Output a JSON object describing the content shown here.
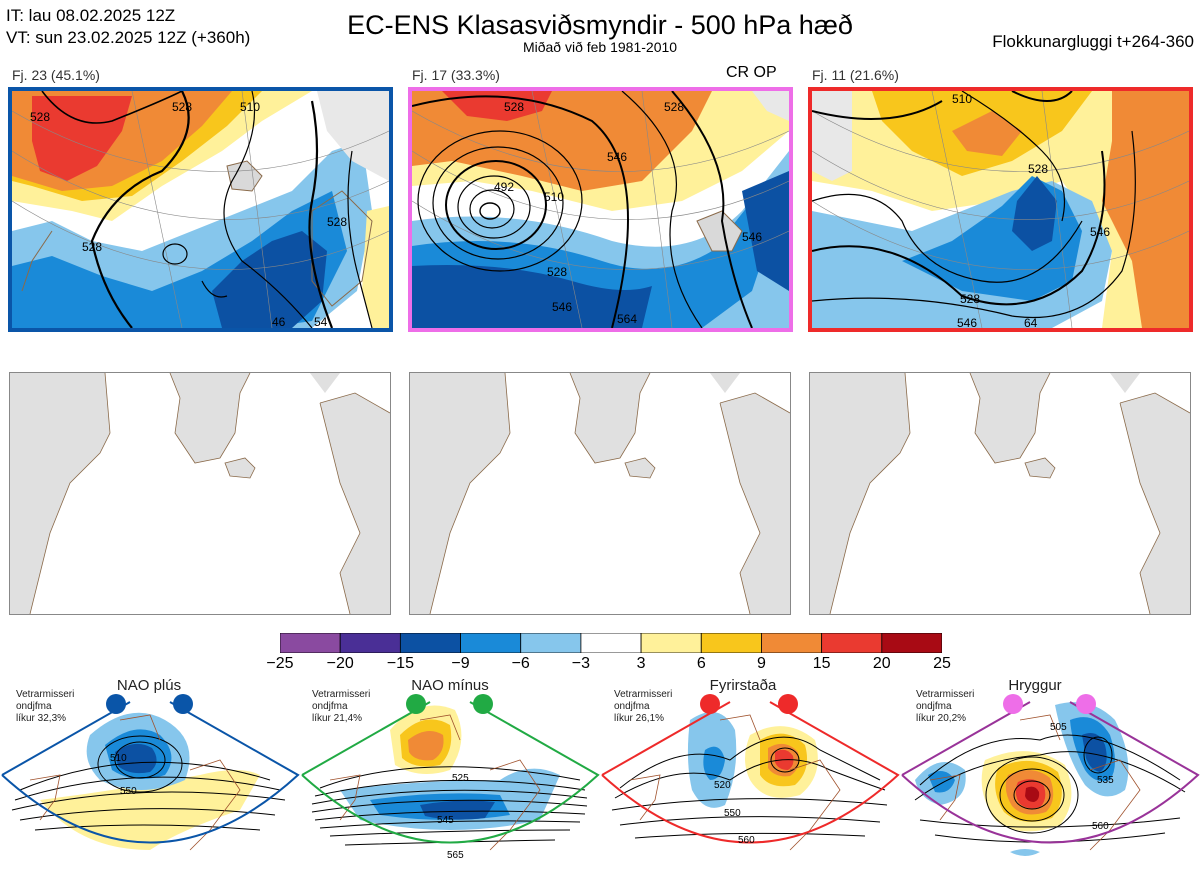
{
  "header": {
    "it_line": "IT: lau 08.02.2025 12Z",
    "vt_line": "VT: sun 23.02.2025 12Z  (+360h)",
    "title": "EC-ENS Klasasviðsmyndir - 500 hPa hæð",
    "subtitle": "Miðað við feb 1981-2010",
    "window": "Flokkunargluggi t+264-360"
  },
  "clusters": [
    {
      "label": "Fj. 23 (45.1%)",
      "border_color": "#0a55a8",
      "contour_labels": [
        "528",
        "510",
        "528",
        "528",
        "528",
        "46",
        "54"
      ]
    },
    {
      "label": "Fj. 17 (33.3%)",
      "border_color": "#ee6ee8",
      "extra_label": "CR OP",
      "contour_labels": [
        "528",
        "546",
        "492",
        "510",
        "546",
        "528",
        "546",
        "564",
        "528"
      ]
    },
    {
      "label": "Fj. 11 (21.6%)",
      "border_color": "#ee2a2a",
      "contour_labels": [
        "510",
        "528",
        "546",
        "528",
        "546",
        "64"
      ]
    }
  ],
  "colorbar": {
    "ticks": [
      "−25",
      "−20",
      "−15",
      "−9",
      "−6",
      "−3",
      "3",
      "6",
      "9",
      "15",
      "20",
      "25"
    ],
    "colors": [
      "#8a4aa0",
      "#4a2f96",
      "#0c51a3",
      "#1a8ad8",
      "#86c6ec",
      "#ffffff",
      "#fff19a",
      "#f8c61c",
      "#f08a36",
      "#ea3a30",
      "#a80a14"
    ]
  },
  "regimes": [
    {
      "name": "NAO plús",
      "note": [
        "Vetrarmisseri",
        "ondjfma",
        "líkur 32,3%"
      ],
      "dot_color": "#0a55a8",
      "outline_color": "#0a55a8",
      "contour_labels": [
        "510",
        "550"
      ]
    },
    {
      "name": "NAO mínus",
      "note": [
        "Vetrarmisseri",
        "ondjfma",
        "líkur 21,4%"
      ],
      "dot_color": "#21aa44",
      "outline_color": "#21aa44",
      "contour_labels": [
        "525",
        "545",
        "565"
      ]
    },
    {
      "name": "Fyrirstaða",
      "note": [
        "Vetrarmisseri",
        "ondjfma",
        "líkur 26,1%"
      ],
      "dot_color": "#ee2a2a",
      "outline_color": "#ee2a2a",
      "contour_labels": [
        "520",
        "550",
        "560"
      ]
    },
    {
      "name": "Hryggur",
      "note": [
        "Vetrarmisseri",
        "ondjfma",
        "líkur 20,2%"
      ],
      "dot_color": "#ee6ee8",
      "outline_color": "#993399",
      "contour_labels": [
        "505",
        "535",
        "560"
      ]
    }
  ],
  "chart_data": {
    "type": "heatmap",
    "title": "EC-ENS Klasasviðsmyndir - 500 hPa hæð",
    "variable": "500 hPa geopotential height (dam) with anomaly shading relative to feb 1981-2010",
    "colorbar_range": [
      -25,
      25
    ],
    "colorbar_bounds": [
      -25,
      -20,
      -15,
      -9,
      -6,
      -3,
      3,
      6,
      9,
      15,
      20,
      25
    ],
    "series": [
      {
        "name": "Fj. 23",
        "share_percent": 45.1
      },
      {
        "name": "Fj. 17",
        "share_percent": 33.3
      },
      {
        "name": "Fj. 11",
        "share_percent": 21.6
      }
    ],
    "climatological_regimes": [
      {
        "name": "NAO plús",
        "probability_percent": 32.3
      },
      {
        "name": "NAO mínus",
        "probability_percent": 21.4
      },
      {
        "name": "Fyrirstaða",
        "probability_percent": 26.1
      },
      {
        "name": "Hryggur",
        "probability_percent": 20.2
      }
    ]
  }
}
